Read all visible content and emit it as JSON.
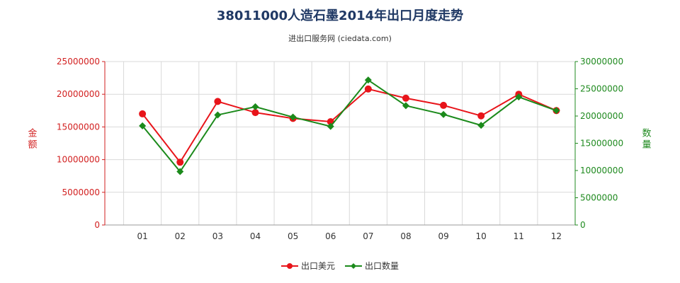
{
  "chart_data": {
    "type": "line",
    "title": "38011000人造石墨2014年出口月度走势",
    "subtitle": "进出口服务网 (ciedata.com)",
    "categories": [
      "01",
      "02",
      "03",
      "04",
      "05",
      "06",
      "07",
      "08",
      "09",
      "10",
      "11",
      "12"
    ],
    "y_left": {
      "label": "金额",
      "ylim": [
        0,
        25000000
      ],
      "ticks": [
        "0",
        "5000000",
        "10000000",
        "15000000",
        "20000000",
        "25000000"
      ],
      "color": "#d21f1f"
    },
    "y_right": {
      "label": "数量",
      "ylim": [
        0,
        30000000
      ],
      "ticks": [
        "0",
        "5000000",
        "10000000",
        "15000000",
        "20000000",
        "25000000",
        "30000000"
      ],
      "color": "#1f8a1f"
    },
    "series": [
      {
        "name": "出口美元",
        "axis": "left",
        "color": "#e8141a",
        "values": [
          17000000,
          9600000,
          18900000,
          17200000,
          16300000,
          15800000,
          20800000,
          19400000,
          18300000,
          16700000,
          20000000,
          17500000
        ]
      },
      {
        "name": "出口数量",
        "axis": "right",
        "color": "#1b8a1b",
        "values": [
          18200000,
          9800000,
          20200000,
          21700000,
          19800000,
          18100000,
          26600000,
          21900000,
          20300000,
          18300000,
          23500000,
          21000000
        ]
      }
    ],
    "grid": true,
    "legend_position": "bottom-center"
  }
}
